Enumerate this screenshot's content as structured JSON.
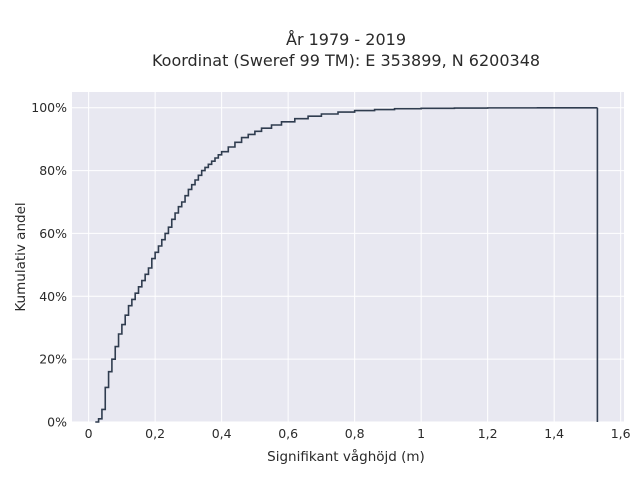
{
  "chart_data": {
    "type": "line",
    "subtype": "step-ecdf",
    "title_line1": "År 1979 - 2019",
    "title_line2": "Koordinat (Sweref 99 TM): E 353899, N 6200348",
    "xlabel": "Signifikant våghöjd (m)",
    "ylabel": "Kumulativ andel",
    "xlim": [
      -0.05,
      1.61
    ],
    "ylim": [
      0,
      1.05
    ],
    "xticks": [
      0,
      0.2,
      0.4,
      0.6,
      0.8,
      1.0,
      1.2,
      1.4,
      1.6
    ],
    "xtick_labels": [
      "0",
      "0,2",
      "0,4",
      "0,6",
      "0,8",
      "1",
      "1,2",
      "1,4",
      "1,6"
    ],
    "yticks": [
      0,
      0.2,
      0.4,
      0.6,
      0.8,
      1.0
    ],
    "ytick_labels": [
      "0%",
      "20%",
      "40%",
      "60%",
      "80%",
      "100%"
    ],
    "grid": true,
    "colors": {
      "plot_bg": "#e8e8f1",
      "grid": "#ffffff",
      "line": "#2f3c4f"
    },
    "series": [
      {
        "x": [
          0.02,
          0.03,
          0.04,
          0.05,
          0.06,
          0.07,
          0.08,
          0.09,
          0.1,
          0.11,
          0.12,
          0.13,
          0.14,
          0.15,
          0.16,
          0.17,
          0.18,
          0.19,
          0.2,
          0.21,
          0.22,
          0.23,
          0.24,
          0.25,
          0.26,
          0.27,
          0.28,
          0.29,
          0.3,
          0.31,
          0.32,
          0.33,
          0.34,
          0.35,
          0.36,
          0.37,
          0.38,
          0.39,
          0.4,
          0.42,
          0.44,
          0.46,
          0.48,
          0.5,
          0.52,
          0.55,
          0.58,
          0.62,
          0.66,
          0.7,
          0.75,
          0.8,
          0.86,
          0.92,
          1.0,
          1.1,
          1.2,
          1.35,
          1.53
        ],
        "y": [
          0.0,
          0.01,
          0.04,
          0.11,
          0.16,
          0.2,
          0.24,
          0.28,
          0.31,
          0.34,
          0.37,
          0.39,
          0.41,
          0.43,
          0.45,
          0.47,
          0.49,
          0.52,
          0.54,
          0.56,
          0.58,
          0.6,
          0.62,
          0.645,
          0.665,
          0.685,
          0.7,
          0.72,
          0.74,
          0.755,
          0.77,
          0.785,
          0.8,
          0.81,
          0.82,
          0.83,
          0.84,
          0.85,
          0.86,
          0.875,
          0.89,
          0.905,
          0.915,
          0.925,
          0.935,
          0.945,
          0.955,
          0.965,
          0.973,
          0.98,
          0.986,
          0.991,
          0.994,
          0.997,
          0.998,
          0.999,
          0.9995,
          0.9998,
          1.0
        ]
      }
    ]
  }
}
